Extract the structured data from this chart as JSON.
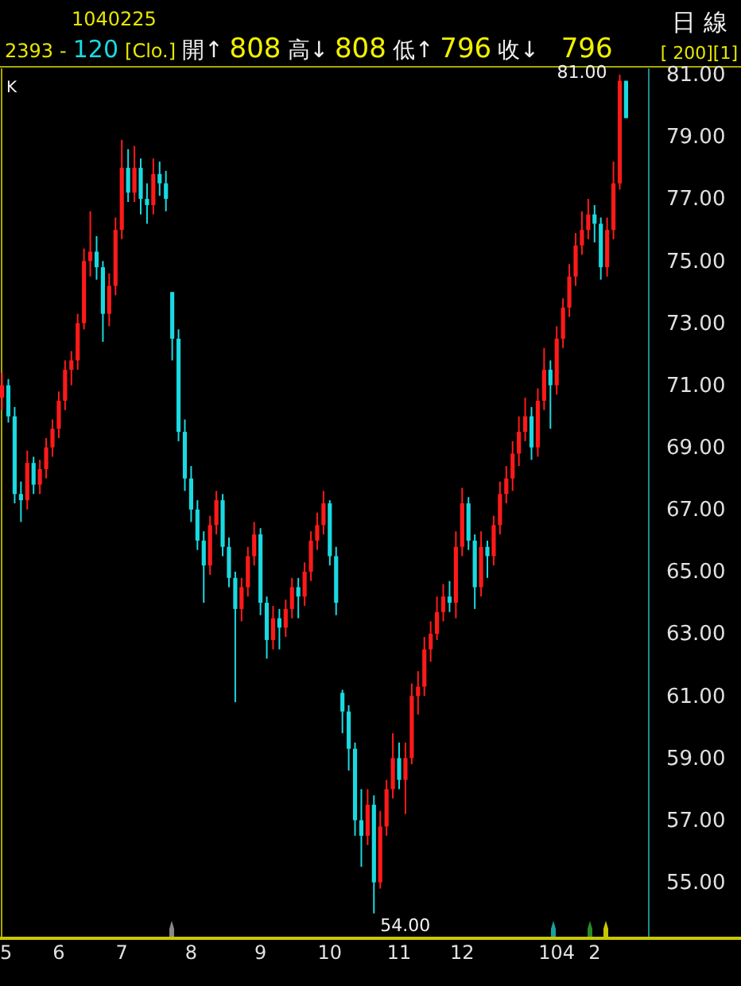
{
  "chart_data": {
    "type": "candlestick",
    "categories": [
      "5",
      null,
      null,
      null,
      null,
      null,
      null,
      null,
      null,
      "6",
      null,
      null,
      null,
      null,
      null,
      null,
      null,
      null,
      null,
      "7",
      null,
      null,
      null,
      null,
      null,
      null,
      null,
      null,
      null,
      null,
      "8",
      null,
      null,
      null,
      null,
      null,
      null,
      null,
      null,
      null,
      null,
      "9",
      null,
      null,
      null,
      null,
      null,
      null,
      null,
      null,
      null,
      null,
      "10",
      null,
      null,
      null,
      null,
      null,
      null,
      null,
      null,
      null,
      null,
      "11",
      null,
      null,
      null,
      null,
      null,
      null,
      null,
      null,
      null,
      "12",
      null,
      null,
      null,
      null,
      null,
      null,
      null,
      null,
      null,
      null,
      null,
      null,
      null,
      null,
      "104",
      null,
      null,
      null,
      null,
      null,
      "2",
      null,
      null,
      null,
      null,
      null
    ],
    "ohlc": [
      [
        70.6,
        71.4,
        70.2,
        71.0
      ],
      [
        71.0,
        71.2,
        69.8,
        70.0
      ],
      [
        70.0,
        70.3,
        67.2,
        67.5
      ],
      [
        67.5,
        67.9,
        66.6,
        67.3
      ],
      [
        67.3,
        68.9,
        67.0,
        68.5
      ],
      [
        68.5,
        68.7,
        67.5,
        67.8
      ],
      [
        67.8,
        68.6,
        67.5,
        68.3
      ],
      [
        68.3,
        69.3,
        68.0,
        69.0
      ],
      [
        69.0,
        69.9,
        68.7,
        69.6
      ],
      [
        69.6,
        70.8,
        69.3,
        70.5
      ],
      [
        70.5,
        71.8,
        70.2,
        71.5
      ],
      [
        71.5,
        72.1,
        71.0,
        71.8
      ],
      [
        71.8,
        73.3,
        71.5,
        73.0
      ],
      [
        73.0,
        75.4,
        72.8,
        75.0
      ],
      [
        75.0,
        76.6,
        74.5,
        75.3
      ],
      [
        75.3,
        75.8,
        74.4,
        74.8
      ],
      [
        74.8,
        75.0,
        72.4,
        73.3
      ],
      [
        73.3,
        74.6,
        72.9,
        74.2
      ],
      [
        74.2,
        76.4,
        73.9,
        76.0
      ],
      [
        76.0,
        78.9,
        75.7,
        78.0
      ],
      [
        78.0,
        78.6,
        76.9,
        77.2
      ],
      [
        77.2,
        78.7,
        76.9,
        78.0
      ],
      [
        78.0,
        78.3,
        76.5,
        77.0
      ],
      [
        77.0,
        77.5,
        76.2,
        76.8
      ],
      [
        76.8,
        78.3,
        76.5,
        77.8
      ],
      [
        77.8,
        78.2,
        77.1,
        77.5
      ],
      [
        77.5,
        77.9,
        76.6,
        77.0
      ],
      [
        74.0,
        74.0,
        71.8,
        72.5
      ],
      [
        72.5,
        72.8,
        69.2,
        69.5
      ],
      [
        69.5,
        69.9,
        67.6,
        68.0
      ],
      [
        68.0,
        68.4,
        66.6,
        67.0
      ],
      [
        67.0,
        67.3,
        65.7,
        66.0
      ],
      [
        66.0,
        66.3,
        64.0,
        65.2
      ],
      [
        65.2,
        66.8,
        64.9,
        66.5
      ],
      [
        66.5,
        67.6,
        66.2,
        67.3
      ],
      [
        67.3,
        67.5,
        65.5,
        65.8
      ],
      [
        65.8,
        66.1,
        64.5,
        64.8
      ],
      [
        64.8,
        65.0,
        60.8,
        63.8
      ],
      [
        63.8,
        64.8,
        63.4,
        64.5
      ],
      [
        64.5,
        65.8,
        64.2,
        65.5
      ],
      [
        65.5,
        66.6,
        65.2,
        66.2
      ],
      [
        66.2,
        66.4,
        63.6,
        64.0
      ],
      [
        64.0,
        64.2,
        62.2,
        62.8
      ],
      [
        62.8,
        63.9,
        62.5,
        63.5
      ],
      [
        63.5,
        63.8,
        62.5,
        63.2
      ],
      [
        63.2,
        64.1,
        62.9,
        63.8
      ],
      [
        63.8,
        64.8,
        63.5,
        64.5
      ],
      [
        64.5,
        64.8,
        63.5,
        64.2
      ],
      [
        64.2,
        65.3,
        63.9,
        65.0
      ],
      [
        65.0,
        66.3,
        64.7,
        66.0
      ],
      [
        66.0,
        66.9,
        65.7,
        66.5
      ],
      [
        66.5,
        67.6,
        66.2,
        67.2
      ],
      [
        67.2,
        67.3,
        65.2,
        65.5
      ],
      [
        65.5,
        65.8,
        63.6,
        64.0
      ],
      [
        61.1,
        61.2,
        59.8,
        60.5
      ],
      [
        60.5,
        60.7,
        58.6,
        59.3
      ],
      [
        59.3,
        59.5,
        56.5,
        57.0
      ],
      [
        57.0,
        58.0,
        55.5,
        56.5
      ],
      [
        56.5,
        58.0,
        56.2,
        57.5
      ],
      [
        57.5,
        57.8,
        54.0,
        55.0
      ],
      [
        55.0,
        57.3,
        54.8,
        56.8
      ],
      [
        56.8,
        58.3,
        56.5,
        58.0
      ],
      [
        58.0,
        59.8,
        57.7,
        59.0
      ],
      [
        59.0,
        59.5,
        58.0,
        58.3
      ],
      [
        58.3,
        59.5,
        57.2,
        59.0
      ],
      [
        59.0,
        61.4,
        58.8,
        61.0
      ],
      [
        61.0,
        61.8,
        60.4,
        61.3
      ],
      [
        61.3,
        62.9,
        61.0,
        62.5
      ],
      [
        62.5,
        63.4,
        62.1,
        63.0
      ],
      [
        63.0,
        64.2,
        62.8,
        63.7
      ],
      [
        63.7,
        64.6,
        63.4,
        64.2
      ],
      [
        64.2,
        64.7,
        63.7,
        64.0
      ],
      [
        64.0,
        66.3,
        63.5,
        65.8
      ],
      [
        65.8,
        67.7,
        65.5,
        67.2
      ],
      [
        67.2,
        67.4,
        65.7,
        66.0
      ],
      [
        66.0,
        66.2,
        63.8,
        64.5
      ],
      [
        64.5,
        66.3,
        64.2,
        65.8
      ],
      [
        65.8,
        66.0,
        64.8,
        65.5
      ],
      [
        65.5,
        66.8,
        65.2,
        66.5
      ],
      [
        66.5,
        67.9,
        66.2,
        67.5
      ],
      [
        67.5,
        68.4,
        67.2,
        68.0
      ],
      [
        68.0,
        69.2,
        67.6,
        68.8
      ],
      [
        68.8,
        70.0,
        68.4,
        69.5
      ],
      [
        69.5,
        70.6,
        69.2,
        70.0
      ],
      [
        70.0,
        70.3,
        68.6,
        69.0
      ],
      [
        69.0,
        70.9,
        68.7,
        70.5
      ],
      [
        70.5,
        72.2,
        70.2,
        71.5
      ],
      [
        71.5,
        71.8,
        69.6,
        71.0
      ],
      [
        71.0,
        72.9,
        70.7,
        72.5
      ],
      [
        72.5,
        73.8,
        72.2,
        73.5
      ],
      [
        73.5,
        74.9,
        73.2,
        74.5
      ],
      [
        74.5,
        75.9,
        74.2,
        75.5
      ],
      [
        75.5,
        76.6,
        75.2,
        76.0
      ],
      [
        76.0,
        77.0,
        75.7,
        76.5
      ],
      [
        76.5,
        76.8,
        75.6,
        76.2
      ],
      [
        76.2,
        76.4,
        74.4,
        74.8
      ],
      [
        74.8,
        76.4,
        74.5,
        76.0
      ],
      [
        76.0,
        78.2,
        75.7,
        77.5
      ],
      [
        77.5,
        81.0,
        77.3,
        80.8
      ],
      [
        80.8,
        80.8,
        79.6,
        79.6
      ]
    ],
    "ylim": [
      53.2,
      81.2
    ],
    "yticks": [
      {
        "value": 55,
        "label": "55.00"
      },
      {
        "value": 57,
        "label": "57.00"
      },
      {
        "value": 59,
        "label": "59.00"
      },
      {
        "value": 61,
        "label": "61.00"
      },
      {
        "value": 63,
        "label": "63.00"
      },
      {
        "value": 65,
        "label": "65.00"
      },
      {
        "value": 67,
        "label": "67.00"
      },
      {
        "value": 69,
        "label": "69.00"
      },
      {
        "value": 71,
        "label": "71.00"
      },
      {
        "value": 73,
        "label": "73.00"
      },
      {
        "value": 75,
        "label": "75.00"
      },
      {
        "value": 77,
        "label": "77.00"
      },
      {
        "value": 79,
        "label": "79.00"
      },
      {
        "value": 81,
        "label": "81.00"
      }
    ],
    "grid": false,
    "annotations": [
      "1040225",
      "2393",
      "-",
      "120",
      "[Clo.]",
      "開↑",
      "808",
      "高↓",
      "808",
      "低↑",
      "796",
      "收↓",
      "796",
      "日 線",
      "[ 200][1]",
      "K",
      "81.00",
      "54.00"
    ]
  }
}
